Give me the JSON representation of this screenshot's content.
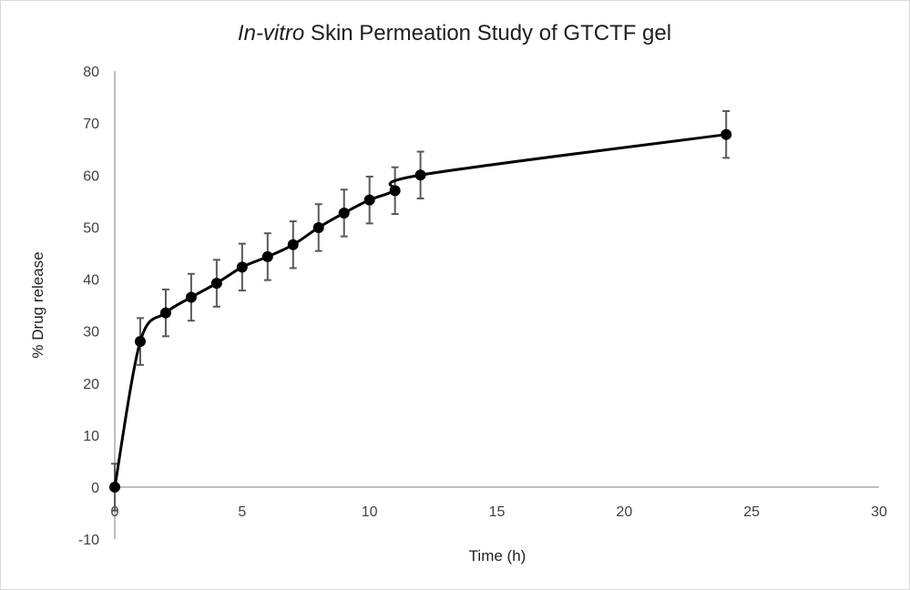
{
  "chart_data": {
    "type": "scatter",
    "title_italic": "In-vitro",
    "title_rest": " Skin Permeation Study of GTCTF gel",
    "title": "In-vitro Skin Permeation Study of GTCTF gel",
    "xlabel": "Time (h)",
    "ylabel": "% Drug release",
    "xlim": [
      0,
      30
    ],
    "ylim": [
      -10,
      80
    ],
    "x_ticks": [
      0,
      5,
      10,
      15,
      20,
      25,
      30
    ],
    "y_ticks": [
      -10,
      0,
      10,
      20,
      30,
      40,
      50,
      60,
      70,
      80
    ],
    "grid": false,
    "legend": "none",
    "smoothed_line": true,
    "series": [
      {
        "name": "GTCTF gel",
        "color": "#000000",
        "error_bar_color": "#595959",
        "x": [
          0,
          1,
          2,
          3,
          4,
          5,
          6,
          7,
          8,
          9,
          10,
          11,
          12,
          24
        ],
        "y": [
          0,
          28.0,
          33.5,
          36.5,
          39.2,
          42.3,
          44.3,
          46.6,
          49.9,
          52.7,
          55.2,
          57.0,
          60.0,
          67.8
        ],
        "error": [
          4.5,
          4.5,
          4.5,
          4.5,
          4.5,
          4.5,
          4.5,
          4.5,
          4.5,
          4.5,
          4.5,
          4.5,
          4.5,
          4.5
        ]
      }
    ]
  }
}
